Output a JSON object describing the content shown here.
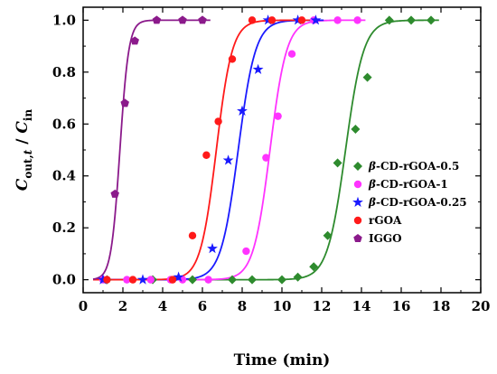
{
  "chart_data": {
    "type": "scatter",
    "xlabel": "Time (min)",
    "ylabel": {
      "main": "C",
      "sub1": "out,",
      "sub1_italic": "t",
      "sep": " / ",
      "main2": "C",
      "sub2": "in"
    },
    "xlim": [
      0,
      20
    ],
    "ylim": [
      -0.05,
      1.05
    ],
    "xticks": [
      "0",
      "2",
      "4",
      "6",
      "8",
      "10",
      "12",
      "14",
      "16",
      "18",
      "20"
    ],
    "yticks": [
      "0.0",
      "0.2",
      "0.4",
      "0.6",
      "0.8",
      "1.0"
    ],
    "grid": false,
    "legend_position": "center-right",
    "series": [
      {
        "name": "β-CD-rGOA-0.5",
        "legend_prefix": "β",
        "legend_suffix": "-CD-rGOA-0.5",
        "color": "#2e8b2e",
        "marker": "diamond",
        "fit": {
          "t50": 13.2,
          "k": 2.2
        },
        "points": [
          [
            1.2,
            0.0
          ],
          [
            3.5,
            0.0
          ],
          [
            5.5,
            0.0
          ],
          [
            7.5,
            0.0
          ],
          [
            8.5,
            0.0
          ],
          [
            10.0,
            0.0
          ],
          [
            10.8,
            0.01
          ],
          [
            11.6,
            0.05
          ],
          [
            12.3,
            0.17
          ],
          [
            12.8,
            0.45
          ],
          [
            13.7,
            0.58
          ],
          [
            14.3,
            0.78
          ],
          [
            15.4,
            1.0
          ],
          [
            16.5,
            1.0
          ],
          [
            17.5,
            1.0
          ]
        ]
      },
      {
        "name": "β-CD-rGOA-1",
        "legend_prefix": "β",
        "legend_suffix": "-CD-rGOA-1",
        "color": "#ff33ff",
        "marker": "circle",
        "fit": {
          "t50": 9.4,
          "k": 2.4
        },
        "points": [
          [
            1.0,
            0.0
          ],
          [
            2.2,
            0.0
          ],
          [
            3.4,
            0.0
          ],
          [
            4.4,
            0.0
          ],
          [
            5.0,
            0.0
          ],
          [
            6.3,
            0.0
          ],
          [
            8.2,
            0.11
          ],
          [
            9.2,
            0.47
          ],
          [
            9.8,
            0.63
          ],
          [
            10.5,
            0.87
          ],
          [
            11.6,
            1.0
          ],
          [
            12.8,
            1.0
          ],
          [
            13.8,
            1.0
          ]
        ]
      },
      {
        "name": "β-CD-rGOA-0.25",
        "legend_prefix": "β",
        "legend_suffix": "-CD-rGOA-0.25",
        "color": "#1a1aff",
        "marker": "star",
        "fit": {
          "t50": 7.8,
          "k": 2.3
        },
        "points": [
          [
            1.0,
            0.0
          ],
          [
            3.0,
            0.0
          ],
          [
            4.8,
            0.01
          ],
          [
            6.5,
            0.12
          ],
          [
            7.3,
            0.46
          ],
          [
            8.0,
            0.65
          ],
          [
            8.8,
            0.81
          ],
          [
            9.3,
            1.0
          ],
          [
            10.8,
            1.0
          ],
          [
            11.7,
            1.0
          ]
        ]
      },
      {
        "name": "rGOA",
        "legend_prefix": "",
        "legend_suffix": "rGOA",
        "color": "#ff1a1a",
        "marker": "circle",
        "fit": {
          "t50": 6.7,
          "k": 2.5
        },
        "points": [
          [
            1.2,
            0.0
          ],
          [
            2.5,
            0.0
          ],
          [
            4.5,
            0.0
          ],
          [
            5.5,
            0.17
          ],
          [
            6.2,
            0.48
          ],
          [
            6.8,
            0.61
          ],
          [
            7.5,
            0.85
          ],
          [
            8.5,
            1.0
          ],
          [
            9.5,
            1.0
          ],
          [
            11.0,
            1.0
          ]
        ]
      },
      {
        "name": "IGGO",
        "legend_prefix": "",
        "legend_suffix": "IGGO",
        "color": "#8b1a8b",
        "marker": "pentagon",
        "fit": {
          "t50": 1.85,
          "k": 4.5
        },
        "points": [
          [
            1.6,
            0.33
          ],
          [
            2.1,
            0.68
          ],
          [
            2.6,
            0.92
          ],
          [
            3.7,
            1.0
          ],
          [
            5.0,
            1.0
          ],
          [
            6.0,
            1.0
          ]
        ]
      }
    ]
  }
}
